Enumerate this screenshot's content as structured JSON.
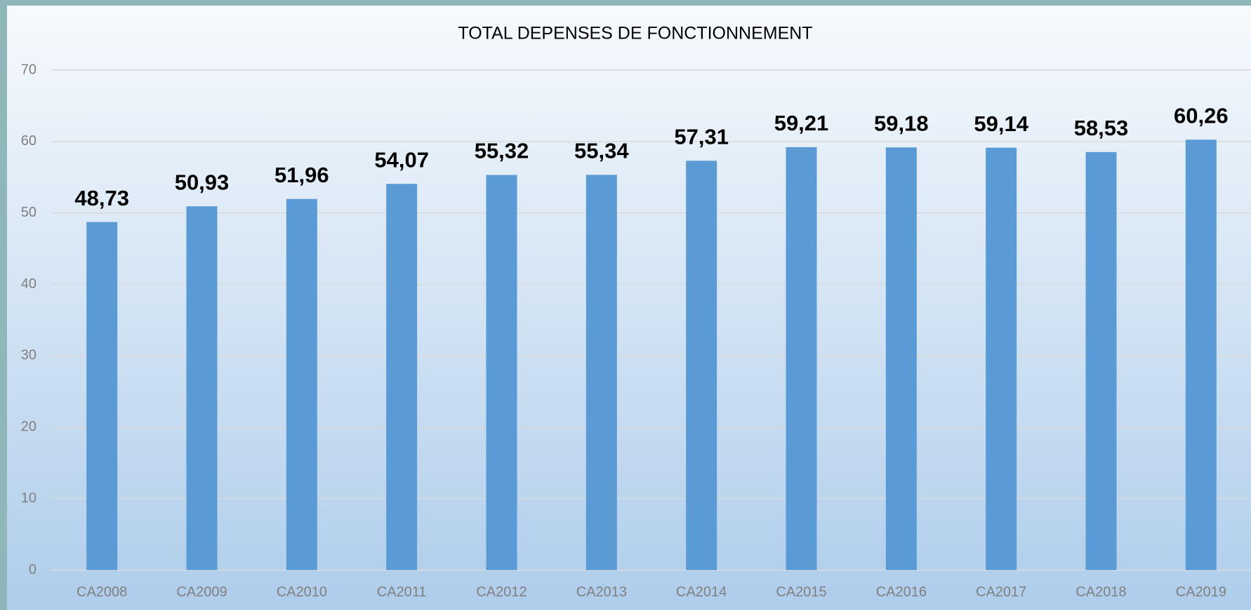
{
  "chart_data": {
    "type": "bar",
    "title": "TOTAL DEPENSES DE FONCTIONNEMENT",
    "categories": [
      "CA2008",
      "CA2009",
      "CA2010",
      "CA2011",
      "CA2012",
      "CA2013",
      "CA2014",
      "CA2015",
      "CA2016",
      "CA2017",
      "CA2018",
      "CA2019"
    ],
    "values": [
      48.73,
      50.93,
      51.96,
      54.07,
      55.32,
      55.34,
      57.31,
      59.21,
      59.18,
      59.14,
      58.53,
      60.26
    ],
    "value_labels": [
      "48,73",
      "50,93",
      "51,96",
      "54,07",
      "55,32",
      "55,34",
      "57,31",
      "59,21",
      "59,18",
      "59,14",
      "58,53",
      "60,26"
    ],
    "color": "#5b9bd5",
    "ylim": [
      0,
      70
    ],
    "yticks": [
      0,
      10,
      20,
      30,
      40,
      50,
      60,
      70
    ],
    "grid": true
  }
}
